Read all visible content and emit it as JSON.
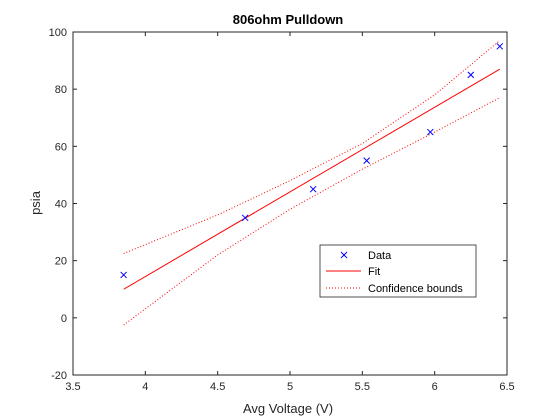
{
  "chart_data": {
    "type": "scatter",
    "title": "806ohm Pulldown",
    "xlabel": "Avg Voltage (V)",
    "ylabel": "psia",
    "xlim": [
      3.5,
      6.5
    ],
    "ylim": [
      -20,
      100
    ],
    "xticks": [
      3.5,
      4,
      4.5,
      5,
      5.5,
      6,
      6.5
    ],
    "yticks": [
      -20,
      0,
      20,
      40,
      60,
      80,
      100
    ],
    "grid": false,
    "legend_position": "inside-lower-right",
    "series": [
      {
        "name": "Data",
        "kind": "scatter",
        "marker": "x",
        "color": "#0000ff",
        "x": [
          3.85,
          4.69,
          5.16,
          5.53,
          5.97,
          6.25,
          6.45
        ],
        "y": [
          15,
          35,
          45,
          55,
          65,
          85,
          95
        ]
      },
      {
        "name": "Fit",
        "kind": "line",
        "style": "solid",
        "color": "#ff0000",
        "x": [
          3.85,
          6.45
        ],
        "y": [
          10,
          87
        ]
      },
      {
        "name": "Confidence bounds",
        "kind": "line",
        "style": "dotted",
        "color": "#ff0000",
        "upper": {
          "x": [
            3.85,
            4.5,
            5.0,
            5.5,
            6.0,
            6.45
          ],
          "y": [
            22.5,
            36,
            48,
            61,
            78,
            97
          ]
        },
        "lower": {
          "x": [
            3.85,
            4.5,
            5.0,
            5.5,
            6.0,
            6.45
          ],
          "y": [
            -2.5,
            22,
            38,
            52,
            65,
            77
          ]
        }
      }
    ]
  }
}
